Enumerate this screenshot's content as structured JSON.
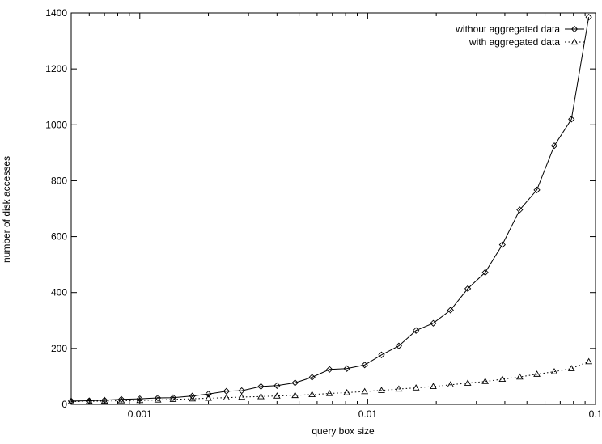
{
  "chart_data": {
    "type": "line",
    "xlabel": "query box size",
    "ylabel": "number of disk accesses",
    "xscale": "log",
    "xlim": [
      0.0005,
      0.1
    ],
    "ylim": [
      0,
      1400
    ],
    "x_ticks": [
      0.001,
      0.01,
      0.1
    ],
    "x_tick_labels": [
      "0.001",
      "0.01",
      "0.1"
    ],
    "y_ticks": [
      0,
      200,
      400,
      600,
      800,
      1000,
      1200,
      1400
    ],
    "y_tick_labels": [
      "0",
      "200",
      "400",
      "600",
      "800",
      "1000",
      "1200",
      "1400"
    ],
    "grid": false,
    "legend_position": "top-right",
    "series": [
      {
        "name": "without aggregated data",
        "marker": "diamond",
        "line": "solid",
        "x": [
          0.0005,
          0.0006,
          0.0007,
          0.00083,
          0.001,
          0.0012,
          0.0014,
          0.0017,
          0.002,
          0.0024,
          0.0028,
          0.0034,
          0.004,
          0.0048,
          0.0057,
          0.0068,
          0.0081,
          0.0097,
          0.0115,
          0.0137,
          0.0163,
          0.0194,
          0.0231,
          0.0275,
          0.0328,
          0.039,
          0.0465,
          0.0553,
          0.0659,
          0.0784,
          0.0934
        ],
        "y": [
          12,
          13,
          15,
          18,
          20,
          23,
          24,
          30,
          37,
          47,
          49,
          64,
          67,
          77,
          97,
          125,
          128,
          141,
          177,
          209,
          264,
          290,
          337,
          414,
          472,
          571,
          696,
          767,
          925,
          1020,
          1385
        ]
      },
      {
        "name": "with aggregated data",
        "marker": "triangle",
        "line": "dotted",
        "x": [
          0.0005,
          0.0006,
          0.0007,
          0.00083,
          0.001,
          0.0012,
          0.0014,
          0.0017,
          0.002,
          0.0024,
          0.0028,
          0.0034,
          0.004,
          0.0048,
          0.0057,
          0.0068,
          0.0081,
          0.0097,
          0.0115,
          0.0137,
          0.0163,
          0.0194,
          0.0231,
          0.0275,
          0.0328,
          0.039,
          0.0465,
          0.0553,
          0.0659,
          0.0784,
          0.0934
        ],
        "y": [
          10,
          11,
          12,
          13,
          14,
          16,
          18,
          20,
          22,
          24,
          26,
          28,
          30,
          32,
          35,
          39,
          42,
          46,
          50,
          55,
          59,
          64,
          70,
          76,
          82,
          90,
          98,
          108,
          117,
          128,
          153
        ]
      }
    ]
  }
}
